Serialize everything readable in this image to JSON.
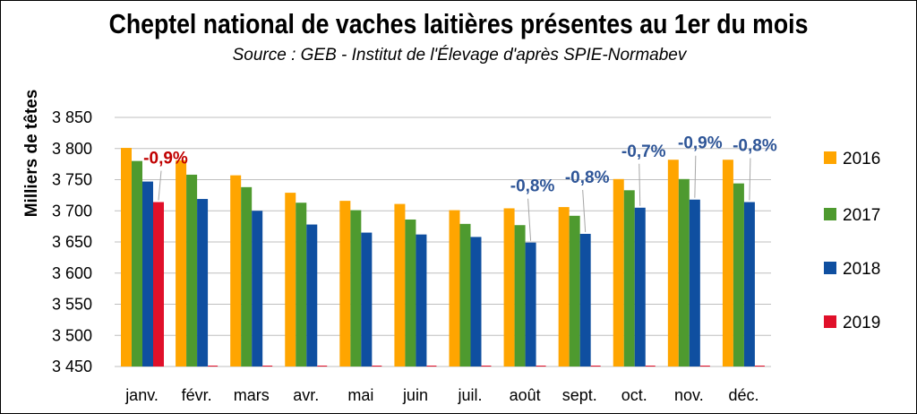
{
  "chart_data": {
    "type": "bar",
    "title": "Cheptel national de vaches laitières présentes au 1er du mois",
    "subtitle": "Source : GEB - Institut de l'Élevage d'après  SPIE-Normabev",
    "ylabel": "Milliers de têtes",
    "xlabel": "",
    "ylim": [
      3450,
      3850
    ],
    "yticks": [
      3450,
      3500,
      3550,
      3600,
      3650,
      3700,
      3750,
      3800,
      3850
    ],
    "ytick_labels": [
      "3 450",
      "3 500",
      "3 550",
      "3 600",
      "3 650",
      "3 700",
      "3 750",
      "3 800",
      "3 850"
    ],
    "grid": true,
    "legend_position": "right",
    "categories": [
      "janv.",
      "févr.",
      "mars",
      "avr.",
      "mai",
      "juin",
      "juil.",
      "août",
      "sept.",
      "oct.",
      "nov.",
      "déc."
    ],
    "series": [
      {
        "name": "2016",
        "color": "#FFA500",
        "values": [
          3801,
          3781,
          3757,
          3729,
          3716,
          3711,
          3701,
          3704,
          3706,
          3751,
          3782,
          3782
        ]
      },
      {
        "name": "2017",
        "color": "#4E9A2F",
        "values": [
          3780,
          3758,
          3738,
          3713,
          3701,
          3686,
          3679,
          3677,
          3692,
          3733,
          3751,
          3744
        ]
      },
      {
        "name": "2018",
        "color": "#0F4FA0",
        "values": [
          3747,
          3719,
          3700,
          3678,
          3665,
          3662,
          3658,
          3649,
          3663,
          3705,
          3718,
          3714
        ]
      },
      {
        "name": "2019",
        "color": "#E0102A",
        "values": [
          3714,
          null,
          null,
          null,
          null,
          null,
          null,
          null,
          null,
          null,
          null,
          null
        ]
      }
    ],
    "annotations": [
      {
        "text": "-0,9%",
        "category": "janv.",
        "series": "2019",
        "color": "#C00000"
      },
      {
        "text": "-0,8%",
        "category": "août",
        "series": "2018",
        "color": "#2E5597"
      },
      {
        "text": "-0,8%",
        "category": "sept.",
        "series": "2018",
        "color": "#2E5597"
      },
      {
        "text": "-0,7%",
        "category": "oct.",
        "series": "2018",
        "color": "#2E5597"
      },
      {
        "text": "-0,9%",
        "category": "nov.",
        "series": "2018",
        "color": "#2E5597"
      },
      {
        "text": "-0,8%",
        "category": "déc.",
        "series": "2018",
        "color": "#2E5597"
      }
    ]
  }
}
